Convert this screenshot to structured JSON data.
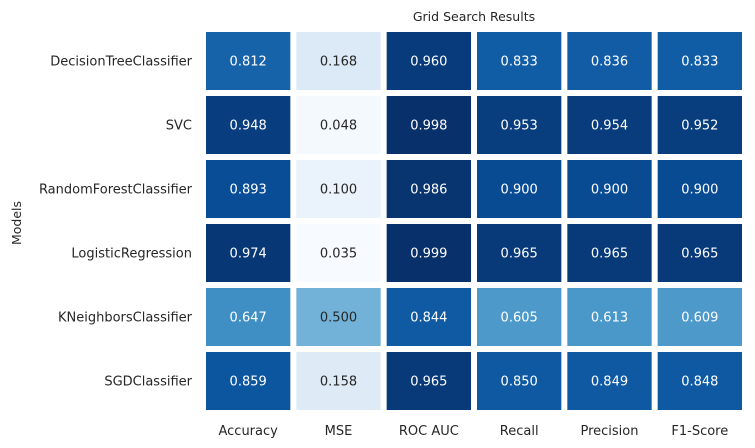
{
  "chart_data": {
    "type": "heatmap",
    "title": "Grid Search Results",
    "xlabel": "",
    "ylabel": "Models",
    "columns": [
      "Accuracy",
      "MSE",
      "ROC AUC",
      "Recall",
      "Precision",
      "F1-Score"
    ],
    "rows": [
      "DecisionTreeClassifier",
      "SVC",
      "RandomForestClassifier",
      "LogisticRegression",
      "KNeighborsClassifier",
      "SGDClassifier"
    ],
    "values": [
      [
        0.812,
        0.168,
        0.96,
        0.833,
        0.836,
        0.833
      ],
      [
        0.948,
        0.048,
        0.998,
        0.953,
        0.954,
        0.952
      ],
      [
        0.893,
        0.1,
        0.986,
        0.9,
        0.9,
        0.9
      ],
      [
        0.974,
        0.035,
        0.999,
        0.965,
        0.965,
        0.965
      ],
      [
        0.647,
        0.5,
        0.844,
        0.605,
        0.613,
        0.609
      ],
      [
        0.859,
        0.158,
        0.965,
        0.85,
        0.849,
        0.848
      ]
    ],
    "value_format": "0.000",
    "colormap": "Blues",
    "colorbar": false,
    "grid": false
  }
}
